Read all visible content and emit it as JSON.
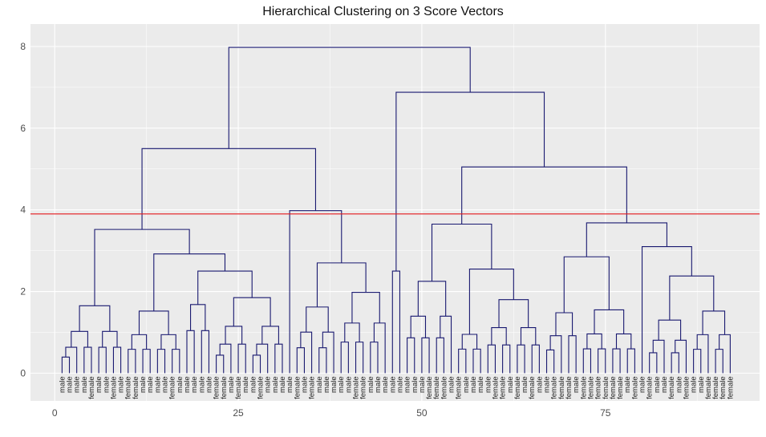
{
  "chart_data": {
    "type": "dendrogram",
    "title": "Hierarchical Clustering on 3 Score Vectors",
    "xlabel": "",
    "ylabel": "",
    "xlim": [
      -3.3,
      96
    ],
    "ylim": [
      -0.68,
      8.55
    ],
    "x_ticks": [
      0,
      25,
      50,
      75
    ],
    "y_ticks": [
      0,
      2,
      4,
      6,
      8
    ],
    "grid": true,
    "cut_height": 3.9,
    "colors": {
      "branch": "#191970",
      "cut_line": "#e31a1c",
      "panel_background": "#ebebeb",
      "grid": "#ffffff"
    },
    "leaf_labels": [
      "male",
      "male",
      "male",
      "male",
      "female",
      "male",
      "male",
      "female",
      "male",
      "female",
      "female",
      "male",
      "male",
      "male",
      "male",
      "female",
      "male",
      "male",
      "male",
      "male",
      "male",
      "female",
      "female",
      "male",
      "female",
      "male",
      "male",
      "female",
      "male",
      "male",
      "male",
      "male",
      "female",
      "male",
      "female",
      "male",
      "male",
      "male",
      "male",
      "male",
      "female",
      "female",
      "male",
      "male",
      "male",
      "male",
      "male",
      "male",
      "male",
      "male",
      "female",
      "female",
      "female",
      "male",
      "female",
      "male",
      "male",
      "male",
      "male",
      "female",
      "female",
      "male",
      "female",
      "male",
      "female",
      "male",
      "male",
      "female",
      "female",
      "female",
      "male",
      "female",
      "female",
      "female",
      "female",
      "female",
      "female",
      "male",
      "female",
      "male",
      "female",
      "male",
      "male",
      "female",
      "male",
      "female",
      "male",
      "male",
      "female",
      "female",
      "female",
      "female"
    ],
    "merges": [
      [
        -4,
        -5,
        0.15
      ],
      [
        -56,
        -57,
        0.1
      ],
      [
        -22,
        -23,
        0.25
      ],
      [
        -51,
        -52,
        0.3
      ],
      [
        -18,
        -19,
        0.32
      ],
      [
        -65,
        -66,
        0.35
      ],
      [
        -41,
        -42,
        0.35
      ],
      [
        -72,
        -73,
        0.35
      ],
      [
        -13,
        -14,
        0.4
      ],
      [
        -2,
        -3,
        0.45
      ],
      [
        -9,
        -10,
        0.45
      ],
      [
        -66,
        -67,
        0.45
      ],
      [
        -55,
        -56,
        0.45
      ],
      [
        -74,
        -75,
        0.45
      ],
      [
        -78,
        -79,
        0.45
      ],
      [
        -86,
        -87,
        0.45
      ],
      [
        -66,
        -67,
        0.5
      ],
      [
        -28,
        -29,
        0.5
      ],
      [
        -33,
        -34,
        0.55
      ],
      [
        -84,
        -85,
        0.58
      ],
      [
        -67,
        -68,
        0.6
      ],
      [
        -88,
        -89,
        0.6
      ],
      [
        -73,
        -74,
        0.6
      ],
      [
        -34,
        -35,
        0.6
      ],
      [
        -14,
        -15,
        0.55
      ],
      [
        -24,
        -25,
        0.62
      ],
      [
        -57,
        -58,
        0.65
      ],
      [
        -20,
        -21,
        0.65
      ],
      [
        -1,
        -2,
        0.65
      ],
      [
        -88,
        -89,
        0.68
      ],
      [
        -16,
        -17,
        0.7
      ],
      [
        -49,
        -50,
        0.72
      ],
      [
        -27,
        -28,
        0.75
      ],
      [
        -12,
        -13,
        0.78
      ],
      [
        -43,
        -44,
        0.78
      ],
      [
        -59,
        -60,
        0.8
      ],
      [
        -83,
        -84,
        0.8
      ],
      [
        -76,
        -77,
        0.85
      ],
      [
        -6,
        -7,
        0.85
      ],
      [
        -62,
        -63,
        0.95
      ],
      [
        -39,
        -40,
        0.98
      ],
      [
        -11,
        -12,
        0.98
      ],
      [
        -31,
        -32,
        1.0
      ],
      [
        -48,
        -49,
        1.0
      ],
      [
        -8,
        -9,
        1.0
      ],
      [
        -20,
        -21,
        1.0
      ],
      [
        -36,
        -37,
        1.15
      ],
      [
        -64,
        -65,
        1.1
      ],
      [
        -81,
        -82,
        1.25
      ],
      [
        -45,
        -46,
        1.85
      ],
      [
        -47,
        -48,
        2.25
      ],
      [
        -44,
        -45,
        2.5
      ]
    ]
  }
}
